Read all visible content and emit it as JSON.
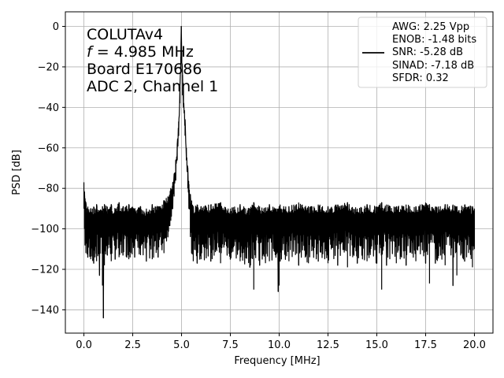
{
  "chart_data": {
    "type": "line",
    "title": "",
    "xlabel": "Frequency [MHz]",
    "ylabel": "PSD [dB]",
    "xlim": [
      -0.95,
      20.95
    ],
    "ylim": [
      -151.5,
      7.2
    ],
    "xticks": [
      0.0,
      2.5,
      5.0,
      7.5,
      10.0,
      12.5,
      15.0,
      17.5,
      20.0
    ],
    "xtick_labels": [
      "0.0",
      "2.5",
      "5.0",
      "7.5",
      "10.0",
      "12.5",
      "15.0",
      "17.5",
      "20.0"
    ],
    "yticks": [
      0,
      -20,
      -40,
      -60,
      -80,
      -100,
      -120,
      -140
    ],
    "ytick_labels": [
      "0",
      "−20",
      "−40",
      "−60",
      "−80",
      "−100",
      "−120",
      "−140"
    ],
    "grid": true,
    "annotation": {
      "line1": "COLUTAv4",
      "line2_var": "f",
      "line2_rest": " = 4.985 MHz",
      "line3": "Board E170686",
      "line4": "ADC 2, Channel 1"
    },
    "legend": {
      "placement": "upper right",
      "entries": [
        "AWG: 2.25 Vpp",
        "ENOB: -1.48 bits",
        "SNR: -5.28 dB",
        "SINAD: -7.18 dB",
        "SFDR: 0.32"
      ]
    },
    "series": [
      {
        "color": "#000000",
        "x": [
          0.0,
          0.03,
          0.06,
          0.1,
          0.2,
          0.35,
          0.5,
          0.65,
          0.8,
          0.95,
          1.0,
          1.05,
          1.2,
          1.4,
          1.6,
          1.8,
          2.0,
          2.3,
          2.6,
          2.9,
          3.2,
          3.5,
          3.8,
          4.1,
          4.3,
          4.45,
          4.55,
          4.62,
          4.7,
          4.78,
          4.85,
          4.92,
          4.96,
          4.985,
          5.01,
          5.05,
          5.1,
          5.18,
          5.25,
          5.32,
          5.38,
          5.45,
          5.52,
          5.6,
          5.8,
          6.0,
          6.5,
          7.0,
          7.5,
          8.0,
          8.5,
          8.7,
          9.0,
          9.5,
          9.95,
          10.0,
          10.05,
          10.5,
          11.0,
          11.5,
          12.0,
          12.5,
          13.0,
          13.5,
          14.0,
          14.5,
          15.0,
          15.25,
          15.5,
          16.0,
          16.5,
          17.0,
          17.5,
          17.7,
          18.0,
          18.5,
          18.9,
          19.1,
          19.5,
          19.9,
          20.0
        ],
        "upper": [
          -77,
          -82,
          -85,
          -87,
          -89,
          -90,
          -89,
          -88,
          -91,
          -89,
          -90,
          -88,
          -89,
          -88,
          -90,
          -87,
          -89,
          -88,
          -90,
          -89,
          -90,
          -88,
          -89,
          -86,
          -84,
          -80,
          -77,
          -73,
          -66,
          -58,
          -47,
          -30,
          -15,
          0,
          -12,
          -24,
          -32,
          -46,
          -60,
          -70,
          -78,
          -83,
          -86,
          -89,
          -88,
          -89,
          -88,
          -87,
          -90,
          -88,
          -90,
          -87,
          -89,
          -88,
          -90,
          -89,
          -88,
          -89,
          -87,
          -89,
          -88,
          -89,
          -88,
          -87,
          -90,
          -88,
          -89,
          -87,
          -88,
          -89,
          -88,
          -89,
          -87,
          -88,
          -89,
          -88,
          -88,
          -89,
          -88,
          -89,
          -90
        ],
        "lower": [
          -90,
          -100,
          -108,
          -112,
          -114,
          -115,
          -117,
          -116,
          -123,
          -128,
          -144,
          -118,
          -113,
          -116,
          -115,
          -114,
          -113,
          -115,
          -114,
          -113,
          -116,
          -115,
          -114,
          -112,
          -104,
          -96,
          -90,
          -84,
          -76,
          -66,
          -54,
          -38,
          -22,
          -3,
          -18,
          -34,
          -40,
          -54,
          -66,
          -80,
          -90,
          -104,
          -112,
          -116,
          -117,
          -115,
          -116,
          -117,
          -115,
          -116,
          -119,
          -130,
          -118,
          -116,
          -131,
          -128,
          -116,
          -116,
          -118,
          -117,
          -116,
          -117,
          -118,
          -119,
          -117,
          -116,
          -117,
          -130,
          -118,
          -117,
          -118,
          -116,
          -117,
          -127,
          -117,
          -118,
          -128,
          -123,
          -116,
          -119,
          -110
        ]
      }
    ]
  }
}
